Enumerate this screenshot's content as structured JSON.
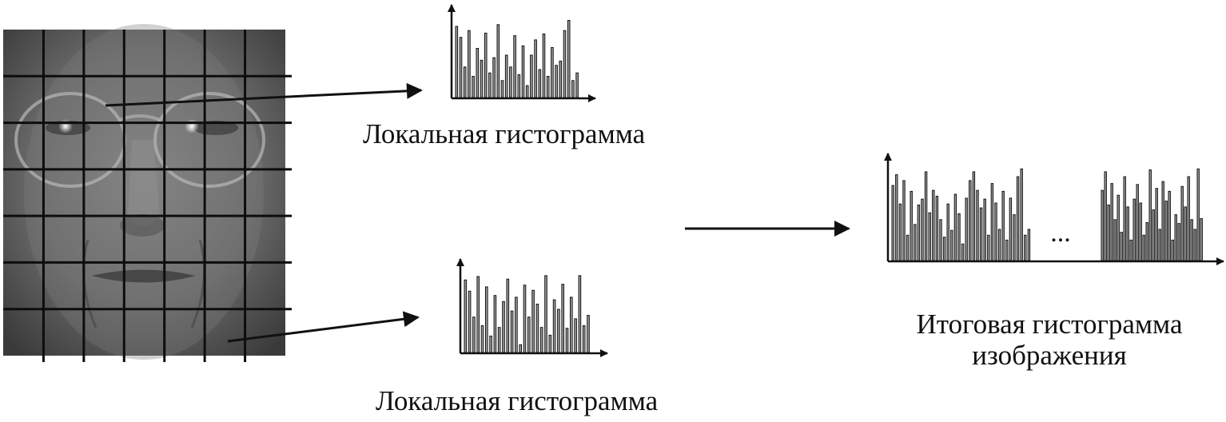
{
  "captions": {
    "local_top": "Локальная гистограмма",
    "local_bottom": "Локальная гистограмма",
    "final_line1": "Итоговая гистограмма",
    "final_line2": "изображения"
  },
  "ellipsis": "...",
  "face_grid": {
    "rows": 7,
    "cols": 7
  },
  "colors": {
    "ink": "#111111",
    "bar_fill": "#a0a0a0",
    "photo_base": "#6a6a6a"
  },
  "histograms": {
    "local_top": [
      0.84,
      0.71,
      0.36,
      0.79,
      0.25,
      0.58,
      0.44,
      0.76,
      0.29,
      0.47,
      0.86,
      0.2,
      0.5,
      0.36,
      0.73,
      0.27,
      0.61,
      0.14,
      0.5,
      0.68,
      0.33,
      0.75,
      0.25,
      0.59,
      0.38,
      0.43,
      0.79,
      0.91,
      0.2,
      0.29
    ],
    "local_bottom": [
      0.84,
      0.71,
      0.41,
      0.88,
      0.31,
      0.76,
      0.19,
      0.66,
      0.29,
      0.59,
      0.85,
      0.48,
      0.64,
      0.09,
      0.78,
      0.41,
      0.72,
      0.56,
      0.29,
      0.89,
      0.2,
      0.61,
      0.5,
      0.79,
      0.28,
      0.64,
      0.39,
      0.89,
      0.31,
      0.43
    ],
    "final_left": [
      0.77,
      0.88,
      0.58,
      0.82,
      0.26,
      0.71,
      0.37,
      0.57,
      0.63,
      0.91,
      0.49,
      0.72,
      0.66,
      0.42,
      0.24,
      0.58,
      0.31,
      0.68,
      0.48,
      0.17,
      0.64,
      0.82,
      0.91,
      0.72,
      0.54,
      0.63,
      0.26,
      0.79,
      0.59,
      0.32,
      0.71,
      0.21,
      0.64,
      0.47,
      0.86,
      0.94,
      0.26,
      0.32
    ],
    "final_right": [
      0.72,
      0.91,
      0.57,
      0.79,
      0.42,
      0.67,
      0.29,
      0.86,
      0.55,
      0.21,
      0.63,
      0.78,
      0.59,
      0.26,
      0.39,
      0.93,
      0.52,
      0.74,
      0.32,
      0.81,
      0.61,
      0.71,
      0.21,
      0.47,
      0.38,
      0.76,
      0.55,
      0.86,
      0.42,
      0.32,
      0.94,
      0.43
    ]
  }
}
